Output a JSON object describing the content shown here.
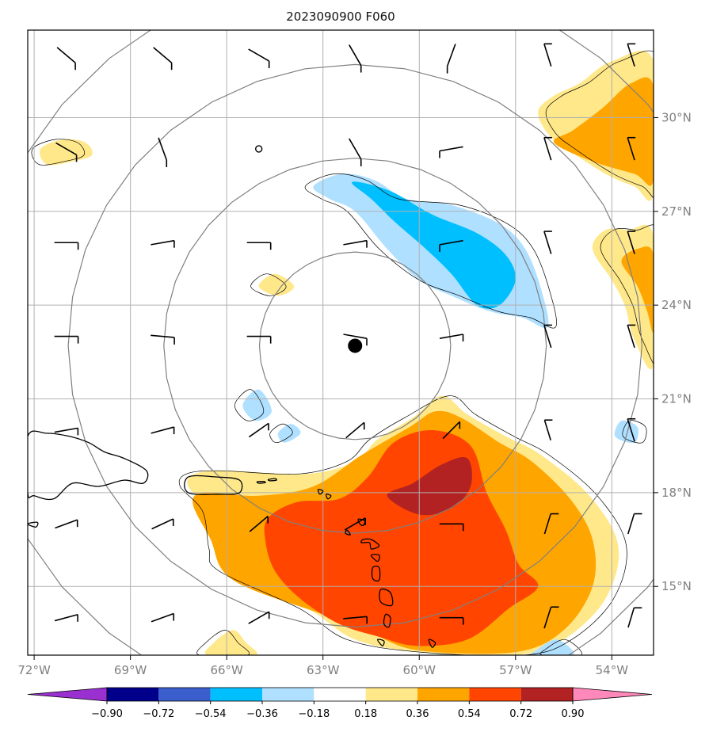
{
  "chart_data": {
    "type": "heatmap",
    "title": "2023090900 F060",
    "lon_range": [
      -72.2,
      -52.7
    ],
    "lat_range": [
      12.8,
      32.8
    ],
    "x_tick_labels": [
      "72°W",
      "69°W",
      "66°W",
      "63°W",
      "60°W",
      "57°W",
      "54°W"
    ],
    "x_tick_values": [
      -72,
      -69,
      -66,
      -63,
      -60,
      -57,
      -54
    ],
    "y_tick_labels": [
      "15°N",
      "18°N",
      "21°N",
      "24°N",
      "27°N",
      "30°N"
    ],
    "y_tick_values": [
      15,
      18,
      21,
      24,
      27,
      30
    ],
    "grid": true,
    "storm_center": {
      "lon": -62.0,
      "lat": 22.7
    },
    "range_rings_deg": [
      3,
      6,
      9,
      12
    ],
    "colorbar": {
      "tick_labels": [
        "−0.90",
        "−0.72",
        "−0.54",
        "−0.36",
        "−0.18",
        "0.18",
        "0.36",
        "0.54",
        "0.72",
        "0.90"
      ],
      "bounds": [
        -0.9,
        -0.72,
        -0.54,
        -0.36,
        -0.18,
        0.18,
        0.36,
        0.54,
        0.72,
        0.9
      ],
      "colors": [
        "#9b30d0",
        "#00008b",
        "#3a5fcd",
        "#00bfff",
        "#b0e0ff",
        "#ffffff",
        "#ffe88a",
        "#ffa500",
        "#ff4500",
        "#b22222",
        "#ff88bb"
      ],
      "extend": "both"
    },
    "regions": [
      {
        "level": 0.18,
        "color": "#ffe88a",
        "points": [
          [
            -67.2,
            18.2
          ],
          [
            -66.5,
            17.4
          ],
          [
            -66.3,
            16.2
          ],
          [
            -66,
            15.5
          ],
          [
            -63.5,
            14.3
          ],
          [
            -62,
            13.3
          ],
          [
            -60,
            12.9
          ],
          [
            -57,
            12.8
          ],
          [
            -55.5,
            13.3
          ],
          [
            -54.2,
            14.6
          ],
          [
            -53.8,
            16.3
          ],
          [
            -54.7,
            17.9
          ],
          [
            -56.2,
            19.2
          ],
          [
            -57.3,
            19.8
          ],
          [
            -58.5,
            20.5
          ],
          [
            -59.3,
            21.1
          ],
          [
            -60.2,
            20.4
          ],
          [
            -61.3,
            19.7
          ],
          [
            -62,
            19.0
          ],
          [
            -63.5,
            18.6
          ],
          [
            -66,
            18.7
          ],
          [
            -67.0,
            18.6
          ]
        ]
      },
      {
        "level": 0.36,
        "color": "#ffa500",
        "points": [
          [
            -67.0,
            17.9
          ],
          [
            -66.5,
            16.5
          ],
          [
            -65.8,
            15.2
          ],
          [
            -63,
            14.1
          ],
          [
            -61.5,
            13.5
          ],
          [
            -60,
            12.95
          ],
          [
            -57,
            12.9
          ],
          [
            -55.5,
            13.6
          ],
          [
            -54.6,
            15.0
          ],
          [
            -54.6,
            16.5
          ],
          [
            -55.3,
            17.8
          ],
          [
            -56.5,
            19.0
          ],
          [
            -57.5,
            19.6
          ],
          [
            -58.7,
            20.4
          ],
          [
            -59.5,
            20.6
          ],
          [
            -60.3,
            20.1
          ],
          [
            -61.8,
            19.2
          ],
          [
            -63.3,
            18.2
          ],
          [
            -65,
            17.9
          ]
        ]
      },
      {
        "level": 0.54,
        "color": "#ff4500",
        "points": [
          [
            -64.7,
            17.2
          ],
          [
            -63.8,
            17.7
          ],
          [
            -62.5,
            17.8
          ],
          [
            -61.6,
            18.5
          ],
          [
            -60.8,
            19.6
          ],
          [
            -59.6,
            20.0
          ],
          [
            -58.4,
            19.5
          ],
          [
            -57.9,
            18.0
          ],
          [
            -57.3,
            16.8
          ],
          [
            -56.9,
            15.7
          ],
          [
            -56.3,
            15.0
          ],
          [
            -57.2,
            14.3
          ],
          [
            -58.5,
            13.3
          ],
          [
            -60.1,
            13.1
          ],
          [
            -61.3,
            13.4
          ],
          [
            -62.5,
            13.8
          ],
          [
            -63.7,
            14.6
          ],
          [
            -64.5,
            15.5
          ],
          [
            -64.8,
            16.5
          ]
        ]
      },
      {
        "level": 0.72,
        "color": "#b22222",
        "points": [
          [
            -61.0,
            17.9
          ],
          [
            -60.2,
            18.3
          ],
          [
            -59.3,
            18.9
          ],
          [
            -58.5,
            19.1
          ],
          [
            -58.4,
            18.2
          ],
          [
            -59.0,
            17.5
          ],
          [
            -60.0,
            17.3
          ]
        ]
      },
      {
        "level": 0.18,
        "color": "#ffe88a",
        "points": [
          [
            -56.3,
            30.2
          ],
          [
            -56.0,
            29.5
          ],
          [
            -55.4,
            29.0
          ],
          [
            -54.2,
            28.2
          ],
          [
            -53.3,
            27.8
          ],
          [
            -52.7,
            27.6
          ],
          [
            -52.7,
            31.8
          ],
          [
            -54.0,
            31.8
          ],
          [
            -55.0,
            31.1
          ],
          [
            -55.8,
            30.7
          ]
        ]
      },
      {
        "level": 0.36,
        "color": "#ffa500",
        "points": [
          [
            -55.8,
            29.2
          ],
          [
            -54.6,
            28.6
          ],
          [
            -53.3,
            28.2
          ],
          [
            -52.7,
            28.0
          ],
          [
            -52.7,
            31.0
          ],
          [
            -53.4,
            31.1
          ],
          [
            -54.3,
            30.3
          ],
          [
            -55.2,
            29.6
          ]
        ]
      },
      {
        "level": 0.18,
        "color": "#ffe88a",
        "points": [
          [
            -54.6,
            25.8
          ],
          [
            -54.0,
            24.8
          ],
          [
            -53.6,
            24.0
          ],
          [
            -53.3,
            22.9
          ],
          [
            -52.7,
            22.1
          ],
          [
            -52.7,
            26.2
          ],
          [
            -53.5,
            26.4
          ],
          [
            -54.2,
            26.4
          ]
        ]
      },
      {
        "level": 0.36,
        "color": "#ffa500",
        "points": [
          [
            -53.7,
            25.4
          ],
          [
            -53.2,
            24.6
          ],
          [
            -52.9,
            23.8
          ],
          [
            -52.7,
            23.2
          ],
          [
            -52.7,
            25.6
          ],
          [
            -53.2,
            25.8
          ]
        ]
      },
      {
        "level": 0.18,
        "color": "#ffe88a",
        "points": [
          [
            -71.8,
            29.0
          ],
          [
            -71.1,
            29.3
          ],
          [
            -70.4,
            29.2
          ],
          [
            -70.2,
            28.8
          ],
          [
            -70.8,
            28.6
          ],
          [
            -71.6,
            28.5
          ]
        ]
      },
      {
        "level": 0.18,
        "color": "#ffe88a",
        "points": [
          [
            -64.5,
            25.0
          ],
          [
            -63.9,
            24.6
          ],
          [
            -64.4,
            24.3
          ],
          [
            -65.0,
            24.6
          ]
        ]
      },
      {
        "level": -0.18,
        "color": "#b0e0ff",
        "points": [
          [
            -63.3,
            27.8
          ],
          [
            -62.4,
            28.2
          ],
          [
            -61.4,
            28.0
          ],
          [
            -60.4,
            27.4
          ],
          [
            -59.0,
            27.2
          ],
          [
            -57.5,
            26.6
          ],
          [
            -56.7,
            25.8
          ],
          [
            -56.2,
            24.5
          ],
          [
            -56.0,
            23.3
          ],
          [
            -56.8,
            23.6
          ],
          [
            -57.8,
            23.8
          ],
          [
            -59,
            24.3
          ],
          [
            -60.0,
            24.8
          ],
          [
            -61.0,
            25.8
          ],
          [
            -62.0,
            27.0
          ],
          [
            -62.8,
            27.4
          ]
        ]
      },
      {
        "level": -0.36,
        "color": "#00bfff",
        "points": [
          [
            -62.1,
            27.9
          ],
          [
            -61.5,
            27.4
          ],
          [
            -60.8,
            26.7
          ],
          [
            -59.8,
            25.8
          ],
          [
            -59.0,
            25.0
          ],
          [
            -58.2,
            24.0
          ],
          [
            -57.5,
            24.0
          ],
          [
            -57,
            24.8
          ],
          [
            -57.3,
            25.6
          ],
          [
            -58.2,
            26.3
          ],
          [
            -59.6,
            26.9
          ],
          [
            -60.8,
            27.6
          ],
          [
            -61.7,
            27.9
          ]
        ]
      },
      {
        "level": -0.18,
        "color": "#b0e0ff",
        "points": [
          [
            -65.0,
            21.3
          ],
          [
            -64.6,
            20.6
          ],
          [
            -65.1,
            20.3
          ],
          [
            -65.5,
            20.8
          ]
        ]
      },
      {
        "level": -0.18,
        "color": "#b0e0ff",
        "points": [
          [
            -64.0,
            20.2
          ],
          [
            -63.7,
            19.9
          ],
          [
            -64.2,
            19.6
          ],
          [
            -64.4,
            19.9
          ]
        ]
      },
      {
        "level": -0.18,
        "color": "#b0e0ff",
        "points": [
          [
            -53.7,
            20.3
          ],
          [
            -53.2,
            20.1
          ],
          [
            -53.3,
            19.6
          ],
          [
            -53.9,
            19.8
          ]
        ]
      },
      {
        "level": -0.18,
        "color": "#b0e0ff",
        "points": [
          [
            -56.3,
            13.0
          ],
          [
            -55.7,
            13.3
          ],
          [
            -55.2,
            12.8
          ],
          [
            -56.4,
            12.8
          ]
        ]
      },
      {
        "level": 0.18,
        "color": "#ffe88a",
        "points": [
          [
            -66.4,
            13.2
          ],
          [
            -65.8,
            13.6
          ],
          [
            -65.4,
            13.2
          ],
          [
            -65.1,
            12.8
          ],
          [
            -66.6,
            12.8
          ]
        ]
      }
    ]
  }
}
